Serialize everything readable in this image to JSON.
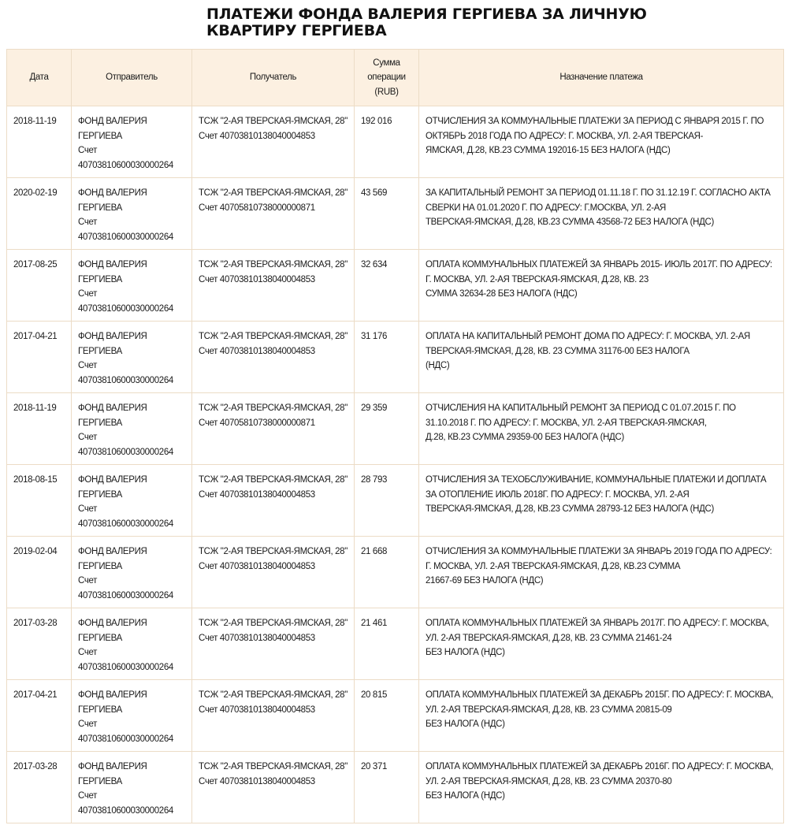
{
  "title": "ПЛАТЕЖИ ФОНДА ВАЛЕРИЯ ГЕРГИЕВА ЗА ЛИЧНУЮ\nКВАРТИРУ ГЕРГИЕВА",
  "colors": {
    "header_bg": "#fcf0e1",
    "border": "#ecdcc6"
  },
  "columns": [
    "Дата",
    "Отправитель",
    "Получатель",
    "Сумма\nоперации\n(RUB)",
    "Назначение платежа"
  ],
  "rows": [
    {
      "date": "2018-11-19",
      "sender": "ФОНД ВАЛЕРИЯ\nГЕРГИЕВА\nСчет\n40703810600030000264",
      "recipient": "ТСЖ \"2-АЯ ТВЕРСКАЯ-ЯМСКАЯ, 28\"\nСчет 40703810138040004853",
      "amount": "192 016",
      "purpose": "ОТЧИСЛЕНИЯ ЗА КОММУНАЛЬНЫЕ ПЛАТЕЖИ ЗА ПЕРИОД С ЯНВАРЯ 2015 Г. ПО\nОКТЯБРЬ 2018 ГОДА ПО АДРЕСУ: Г. МОСКВА, УЛ. 2-АЯ ТВЕРСКАЯ-\nЯМСКАЯ, Д.28, КВ.23 СУММА 192016-15 БЕЗ НАЛОГА (НДС)"
    },
    {
      "date": "2020-02-19",
      "sender": "ФОНД ВАЛЕРИЯ\nГЕРГИЕВА\nСчет\n40703810600030000264",
      "recipient": "ТСЖ \"2-АЯ ТВЕРСКАЯ-ЯМСКАЯ, 28\"\nСчет 40705810738000000871",
      "amount": "43 569",
      "purpose": "ЗА КАПИТАЛЬНЫЙ РЕМОНТ ЗА ПЕРИОД 01.11.18 Г. ПО 31.12.19 Г. СОГЛАСНО АКТА\nСВЕРКИ НА 01.01.2020 Г. ПО АДРЕСУ: Г.МОСКВА, УЛ. 2-АЯ\nТВЕРСКАЯ-ЯМСКАЯ, Д.28, КВ.23 СУММА 43568-72 БЕЗ НАЛОГА (НДС)"
    },
    {
      "date": "2017-08-25",
      "sender": "ФОНД ВАЛЕРИЯ\nГЕРГИЕВА\nСчет\n40703810600030000264",
      "recipient": "ТСЖ \"2-АЯ ТВЕРСКАЯ-ЯМСКАЯ, 28\"\nСчет 40703810138040004853",
      "amount": "32 634",
      "purpose": "ОПЛАТА КОММУНАЛЬНЫХ ПЛАТЕЖЕЙ ЗА ЯНВАРЬ 2015- ИЮЛЬ 2017Г. ПО АДРЕСУ:\nГ. МОСКВА, УЛ. 2-АЯ ТВЕРСКАЯ-ЯМСКАЯ, Д.28, КВ. 23\nСУММА 32634-28 БЕЗ НАЛОГА (НДС)"
    },
    {
      "date": "2017-04-21",
      "sender": "ФОНД ВАЛЕРИЯ\nГЕРГИЕВА\nСчет\n40703810600030000264",
      "recipient": "ТСЖ \"2-АЯ ТВЕРСКАЯ-ЯМСКАЯ, 28\"\nСчет 40703810138040004853",
      "amount": "31 176",
      "purpose": "ОПЛАТА НА КАПИТАЛЬНЫЙ РЕМОНТ ДОМА ПО АДРЕСУ: Г. МОСКВА, УЛ. 2-АЯ\nТВЕРСКАЯ-ЯМСКАЯ, Д.28, КВ. 23 СУММА 31176-00 БЕЗ НАЛОГА\n(НДС)"
    },
    {
      "date": "2018-11-19",
      "sender": "ФОНД ВАЛЕРИЯ\nГЕРГИЕВА\nСчет\n40703810600030000264",
      "recipient": "ТСЖ \"2-АЯ ТВЕРСКАЯ-ЯМСКАЯ, 28\"\nСчет 40705810738000000871",
      "amount": "29 359",
      "purpose": "ОТЧИСЛЕНИЯ НА КАПИТАЛЬНЫЙ РЕМОНТ ЗА ПЕРИОД С 01.07.2015 Г. ПО\n31.10.2018 Г. ПО АДРЕСУ: Г. МОСКВА, УЛ. 2-АЯ ТВЕРСКАЯ-ЯМСКАЯ,\nД.28, КВ.23 СУММА 29359-00 БЕЗ НАЛОГА (НДС)"
    },
    {
      "date": "2018-08-15",
      "sender": "ФОНД ВАЛЕРИЯ\nГЕРГИЕВА\nСчет\n40703810600030000264",
      "recipient": "ТСЖ \"2-АЯ ТВЕРСКАЯ-ЯМСКАЯ, 28\"\nСчет 40703810138040004853",
      "amount": "28 793",
      "purpose": "ОТЧИСЛЕНИЯ ЗА ТЕХОБСЛУЖИВАНИЕ, КОММУНАЛЬНЫЕ ПЛАТЕЖИ И ДОПЛАТА\nЗА ОТОПЛЕНИЕ ИЮЛЬ 2018Г. ПО АДРЕСУ: Г. МОСКВА, УЛ. 2-АЯ\nТВЕРСКАЯ-ЯМСКАЯ, Д.28, КВ.23 СУММА 28793-12 БЕЗ НАЛОГА (НДС)"
    },
    {
      "date": "2019-02-04",
      "sender": "ФОНД ВАЛЕРИЯ\nГЕРГИЕВА\nСчет\n40703810600030000264",
      "recipient": "ТСЖ \"2-АЯ ТВЕРСКАЯ-ЯМСКАЯ, 28\"\nСчет 40703810138040004853",
      "amount": "21 668",
      "purpose": "ОТЧИСЛЕНИЯ ЗА КОММУНАЛЬНЫЕ ПЛАТЕЖИ ЗА ЯНВАРЬ 2019 ГОДА ПО АДРЕСУ:\nГ. МОСКВА, УЛ. 2-АЯ ТВЕРСКАЯ-ЯМСКАЯ, Д.28, КВ.23 СУММА\n21667-69 БЕЗ НАЛОГА (НДС)"
    },
    {
      "date": "2017-03-28",
      "sender": "ФОНД ВАЛЕРИЯ\nГЕРГИЕВА\nСчет\n40703810600030000264",
      "recipient": "ТСЖ \"2-АЯ ТВЕРСКАЯ-ЯМСКАЯ, 28\"\nСчет 40703810138040004853",
      "amount": "21 461",
      "purpose": "ОПЛАТА КОММУНАЛЬНЫХ ПЛАТЕЖЕЙ ЗА ЯНВАРЬ 2017Г. ПО АДРЕСУ: Г. МОСКВА,\nУЛ. 2-АЯ ТВЕРСКАЯ-ЯМСКАЯ, Д.28, КВ. 23 СУММА 21461-24\nБЕЗ НАЛОГА (НДС)"
    },
    {
      "date": "2017-04-21",
      "sender": "ФОНД ВАЛЕРИЯ\nГЕРГИЕВА\nСчет\n40703810600030000264",
      "recipient": "ТСЖ \"2-АЯ ТВЕРСКАЯ-ЯМСКАЯ, 28\"\nСчет 40703810138040004853",
      "amount": "20 815",
      "purpose": "ОПЛАТА КОММУНАЛЬНЫХ ПЛАТЕЖЕЙ ЗА ДЕКАБРЬ 2015Г. ПО АДРЕСУ: Г. МОСКВА,\nУЛ. 2-АЯ ТВЕРСКАЯ-ЯМСКАЯ, Д.28, КВ. 23 СУММА 20815-09\nБЕЗ НАЛОГА (НДС)"
    },
    {
      "date": "2017-03-28",
      "sender": "ФОНД ВАЛЕРИЯ\nГЕРГИЕВА\nСчет\n40703810600030000264",
      "recipient": "ТСЖ \"2-АЯ ТВЕРСКАЯ-ЯМСКАЯ, 28\"\nСчет 40703810138040004853",
      "amount": "20 371",
      "purpose": "ОПЛАТА КОММУНАЛЬНЫХ ПЛАТЕЖЕЙ ЗА ДЕКАБРЬ 2016Г. ПО АДРЕСУ: Г. МОСКВА,\nУЛ. 2-АЯ ТВЕРСКАЯ-ЯМСКАЯ, Д.28, КВ. 23 СУММА 20370-80\nБЕЗ НАЛОГА (НДС)"
    }
  ]
}
